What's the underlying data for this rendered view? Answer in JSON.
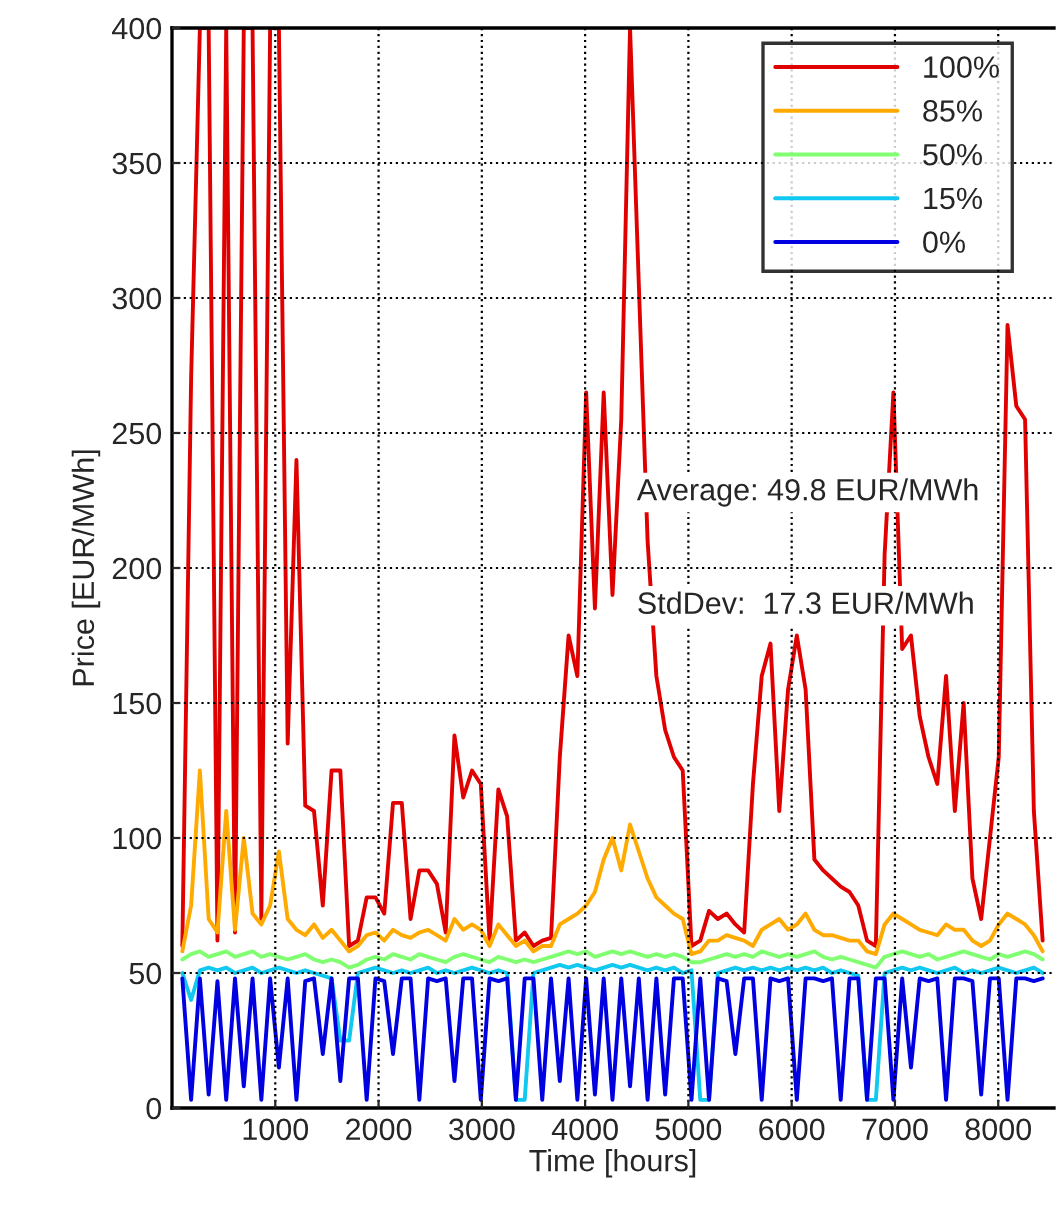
{
  "chart_data": {
    "type": "line",
    "xlabel": "Time [hours]",
    "ylabel": "Price [EUR/MWh]",
    "x": [
      100,
      185,
      270,
      355,
      440,
      525,
      610,
      695,
      780,
      865,
      950,
      1035,
      1120,
      1205,
      1290,
      1375,
      1460,
      1545,
      1630,
      1715,
      1800,
      1885,
      1970,
      2055,
      2140,
      2225,
      2310,
      2395,
      2480,
      2565,
      2650,
      2735,
      2820,
      2905,
      2990,
      3075,
      3160,
      3245,
      3330,
      3415,
      3500,
      3585,
      3670,
      3755,
      3840,
      3925,
      4010,
      4095,
      4180,
      4265,
      4350,
      4435,
      4520,
      4605,
      4690,
      4775,
      4860,
      4945,
      5030,
      5115,
      5200,
      5285,
      5370,
      5455,
      5540,
      5625,
      5710,
      5795,
      5880,
      5965,
      6050,
      6135,
      6220,
      6305,
      6390,
      6475,
      6560,
      6645,
      6730,
      6815,
      6900,
      6985,
      7070,
      7155,
      7240,
      7325,
      7410,
      7495,
      7580,
      7665,
      7750,
      7835,
      7920,
      8005,
      8090,
      8175,
      8260,
      8345,
      8430
    ],
    "series": [
      {
        "name": "100%",
        "color": "#e00000",
        "values": [
          60,
          270,
          400,
          400,
          62,
          400,
          65,
          400,
          400,
          70,
          400,
          400,
          135,
          240,
          112,
          110,
          75,
          125,
          125,
          60,
          62,
          78,
          78,
          72,
          113,
          113,
          70,
          88,
          88,
          83,
          65,
          138,
          115,
          125,
          120,
          62,
          118,
          108,
          62,
          65,
          60,
          62,
          63,
          130,
          175,
          160,
          265,
          185,
          265,
          190,
          255,
          400,
          305,
          210,
          160,
          140,
          130,
          125,
          60,
          62,
          73,
          70,
          72,
          68,
          65,
          120,
          160,
          172,
          110,
          155,
          175,
          155,
          92,
          88,
          85,
          82,
          80,
          75,
          62,
          60,
          205,
          265,
          170,
          175,
          145,
          130,
          120,
          160,
          110,
          150,
          85,
          70,
          100,
          130,
          290,
          260,
          255,
          110,
          62
        ]
      },
      {
        "name": "85%",
        "color": "#ffaa00",
        "values": [
          58,
          75,
          125,
          70,
          65,
          110,
          66,
          100,
          72,
          68,
          75,
          95,
          70,
          66,
          64,
          68,
          63,
          66,
          62,
          58,
          60,
          64,
          65,
          62,
          66,
          64,
          63,
          65,
          66,
          64,
          62,
          70,
          66,
          68,
          66,
          60,
          68,
          64,
          60,
          62,
          58,
          60,
          60,
          68,
          70,
          72,
          75,
          80,
          92,
          100,
          88,
          105,
          95,
          85,
          78,
          75,
          72,
          70,
          57,
          58,
          62,
          62,
          64,
          63,
          62,
          60,
          66,
          68,
          70,
          66,
          68,
          72,
          66,
          64,
          64,
          63,
          62,
          62,
          58,
          57,
          68,
          72,
          70,
          68,
          66,
          65,
          64,
          68,
          66,
          66,
          62,
          60,
          62,
          68,
          72,
          70,
          68,
          64,
          58
        ]
      },
      {
        "name": "50%",
        "color": "#80ff70",
        "values": [
          55,
          57,
          58,
          56,
          57,
          58,
          56,
          57,
          58,
          56,
          57,
          56,
          55,
          56,
          57,
          55,
          54,
          55,
          54,
          52,
          53,
          55,
          56,
          55,
          57,
          56,
          55,
          57,
          56,
          55,
          54,
          56,
          57,
          56,
          55,
          54,
          56,
          55,
          54,
          55,
          54,
          55,
          56,
          57,
          58,
          57,
          58,
          56,
          57,
          58,
          57,
          58,
          57,
          56,
          57,
          56,
          57,
          56,
          54,
          54,
          55,
          56,
          57,
          56,
          57,
          56,
          58,
          57,
          56,
          57,
          56,
          57,
          58,
          56,
          55,
          56,
          55,
          54,
          53,
          52,
          56,
          57,
          58,
          57,
          56,
          57,
          55,
          56,
          57,
          58,
          57,
          56,
          55,
          57,
          56,
          57,
          58,
          57,
          55
        ]
      },
      {
        "name": "15%",
        "color": "#10c8f0",
        "values": [
          50,
          40,
          51,
          52,
          51,
          52,
          50,
          51,
          52,
          50,
          51,
          52,
          51,
          50,
          51,
          50,
          49,
          48,
          25,
          25,
          50,
          51,
          52,
          51,
          50,
          51,
          50,
          51,
          52,
          50,
          51,
          50,
          51,
          52,
          51,
          50,
          51,
          50,
          3,
          3,
          50,
          51,
          52,
          53,
          52,
          53,
          52,
          51,
          52,
          53,
          52,
          53,
          52,
          51,
          52,
          51,
          52,
          50,
          51,
          3,
          3,
          50,
          51,
          52,
          51,
          52,
          51,
          52,
          51,
          52,
          51,
          52,
          51,
          52,
          50,
          51,
          50,
          49,
          3,
          3,
          50,
          51,
          52,
          51,
          52,
          51,
          50,
          51,
          52,
          50,
          51,
          50,
          51,
          52,
          51,
          50,
          51,
          52,
          50
        ]
      },
      {
        "name": "0%",
        "color": "#0000e0",
        "values": [
          48,
          3,
          48,
          5,
          47,
          3,
          48,
          8,
          48,
          3,
          48,
          15,
          48,
          3,
          47,
          48,
          20,
          48,
          10,
          48,
          48,
          3,
          48,
          47,
          20,
          48,
          48,
          3,
          48,
          47,
          48,
          10,
          48,
          48,
          3,
          48,
          47,
          48,
          3,
          48,
          48,
          3,
          48,
          10,
          48,
          3,
          48,
          5,
          48,
          3,
          48,
          8,
          48,
          3,
          48,
          5,
          48,
          48,
          3,
          48,
          3,
          48,
          47,
          20,
          48,
          48,
          3,
          48,
          47,
          48,
          3,
          48,
          48,
          47,
          48,
          3,
          48,
          48,
          3,
          48,
          48,
          3,
          48,
          15,
          48,
          47,
          48,
          3,
          48,
          48,
          47,
          5,
          48,
          48,
          3,
          48,
          48,
          47,
          48
        ]
      }
    ],
    "xlim": [
      0,
      8540
    ],
    "ylim": [
      0,
      400
    ],
    "xticks": [
      1000,
      2000,
      3000,
      4000,
      5000,
      6000,
      7000,
      8000
    ],
    "yticks": [
      0,
      50,
      100,
      150,
      200,
      250,
      300,
      350,
      400
    ],
    "grid": true,
    "legend": "top right",
    "marker": "none",
    "line_style": "solid",
    "annotations": [
      "Average: 49.8 EUR/MWh",
      "StdDev:  17.3 EUR/MWh"
    ]
  }
}
